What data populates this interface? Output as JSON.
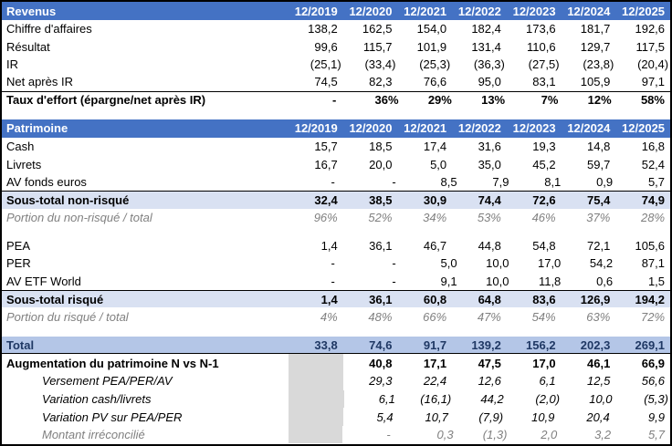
{
  "colors": {
    "header_bg": "#4472C4",
    "header_text": "#FFFFFF",
    "subtotal_bg": "#D9E1F2",
    "total_bg": "#B4C6E7",
    "total_text": "#1F3864",
    "muted_text": "#808080",
    "empty_cell_bg": "#D9D9D9",
    "frame_border": "#000000"
  },
  "years": [
    "12/2019",
    "12/2020",
    "12/2021",
    "12/2022",
    "12/2023",
    "12/2024",
    "12/2025"
  ],
  "sections": [
    {
      "id": "revenus",
      "header": "Revenus",
      "rows": [
        {
          "label": "Chiffre d'affaires",
          "style": "normal",
          "values": [
            "138,2",
            "162,5",
            "154,0",
            "182,4",
            "173,6",
            "181,7",
            "192,6"
          ]
        },
        {
          "label": "Résultat",
          "style": "normal",
          "values": [
            "99,6",
            "115,7",
            "101,9",
            "131,4",
            "110,6",
            "129,7",
            "117,5"
          ]
        },
        {
          "label": "IR",
          "style": "normal",
          "values": [
            "(25,1)",
            "(33,4)",
            "(25,3)",
            "(36,3)",
            "(27,5)",
            "(23,8)",
            "(20,4)"
          ]
        },
        {
          "label": "Net après IR",
          "style": "normal",
          "values": [
            "74,5",
            "82,3",
            "76,6",
            "95,0",
            "83,1",
            "105,9",
            "97,1"
          ]
        },
        {
          "label": "Taux d'effort (épargne/net après IR)",
          "style": "bold",
          "border_top": true,
          "values": [
            "-",
            "36%",
            "29%",
            "13%",
            "7%",
            "12%",
            "58%"
          ]
        }
      ]
    },
    {
      "spacer": true
    },
    {
      "id": "patrimoine",
      "header": "Patrimoine",
      "rows": [
        {
          "label": "Cash",
          "style": "normal",
          "values": [
            "15,7",
            "18,5",
            "17,4",
            "31,6",
            "19,3",
            "14,8",
            "16,8"
          ]
        },
        {
          "label": "Livrets",
          "style": "normal",
          "values": [
            "16,7",
            "20,0",
            "5,0",
            "35,0",
            "45,2",
            "59,7",
            "52,4"
          ]
        },
        {
          "label": "AV fonds euros",
          "style": "normal",
          "values": [
            "-",
            "-",
            "8,5",
            "7,9",
            "8,1",
            "0,9",
            "5,7"
          ]
        },
        {
          "label": "Sous-total non-risqué",
          "style": "subtotal",
          "values": [
            "32,4",
            "38,5",
            "30,9",
            "74,4",
            "72,6",
            "75,4",
            "74,9"
          ]
        },
        {
          "label": "Portion du non-risqué / total",
          "style": "portion",
          "values": [
            "96%",
            "52%",
            "34%",
            "53%",
            "46%",
            "37%",
            "28%"
          ]
        },
        {
          "spacer": true
        },
        {
          "label": "PEA",
          "style": "normal",
          "values": [
            "1,4",
            "36,1",
            "46,7",
            "44,8",
            "54,8",
            "72,1",
            "105,6"
          ]
        },
        {
          "label": "PER",
          "style": "normal",
          "values": [
            "-",
            "-",
            "5,0",
            "10,0",
            "17,0",
            "54,2",
            "87,1"
          ]
        },
        {
          "label": "AV ETF World",
          "style": "normal",
          "values": [
            "-",
            "-",
            "9,1",
            "10,0",
            "11,8",
            "0,6",
            "1,5"
          ]
        },
        {
          "label": "Sous-total risqué",
          "style": "subtotal",
          "values": [
            "1,4",
            "36,1",
            "60,8",
            "64,8",
            "83,6",
            "126,9",
            "194,2"
          ]
        },
        {
          "label": "Portion du risqué / total",
          "style": "portion",
          "values": [
            "4%",
            "48%",
            "66%",
            "47%",
            "54%",
            "63%",
            "72%"
          ]
        }
      ]
    },
    {
      "spacer": true
    },
    {
      "id": "total",
      "header": null,
      "rows": [
        {
          "label": "Total",
          "style": "total",
          "values": [
            "33,8",
            "74,6",
            "91,7",
            "139,2",
            "156,2",
            "202,3",
            "269,1"
          ]
        },
        {
          "label": "Augmentation du patrimoine N vs N-1",
          "style": "bold",
          "gray_first": true,
          "values": [
            "",
            "40,8",
            "17,1",
            "47,5",
            "17,0",
            "46,1",
            "66,9"
          ]
        },
        {
          "label": "Versement PEA/PER/AV",
          "style": "italic",
          "indent": true,
          "gray_first": true,
          "values": [
            "",
            "29,3",
            "22,4",
            "12,6",
            "6,1",
            "12,5",
            "56,6"
          ]
        },
        {
          "label": "Variation cash/livrets",
          "style": "italic",
          "indent": true,
          "gray_first": true,
          "values": [
            "",
            "6,1",
            "(16,1)",
            "44,2",
            "(2,0)",
            "10,0",
            "(5,3)"
          ]
        },
        {
          "label": "Variation PV sur PEA/PER",
          "style": "italic",
          "indent": true,
          "gray_first": true,
          "values": [
            "",
            "5,4",
            "10,7",
            "(7,9)",
            "10,9",
            "20,4",
            "9,9"
          ]
        },
        {
          "label": "Montant irréconcilié",
          "style": "grayitalic",
          "indent": true,
          "gray_first": true,
          "values": [
            "",
            "-",
            "0,3",
            "(1,3)",
            "2,0",
            "3,2",
            "5,7"
          ]
        }
      ]
    }
  ]
}
